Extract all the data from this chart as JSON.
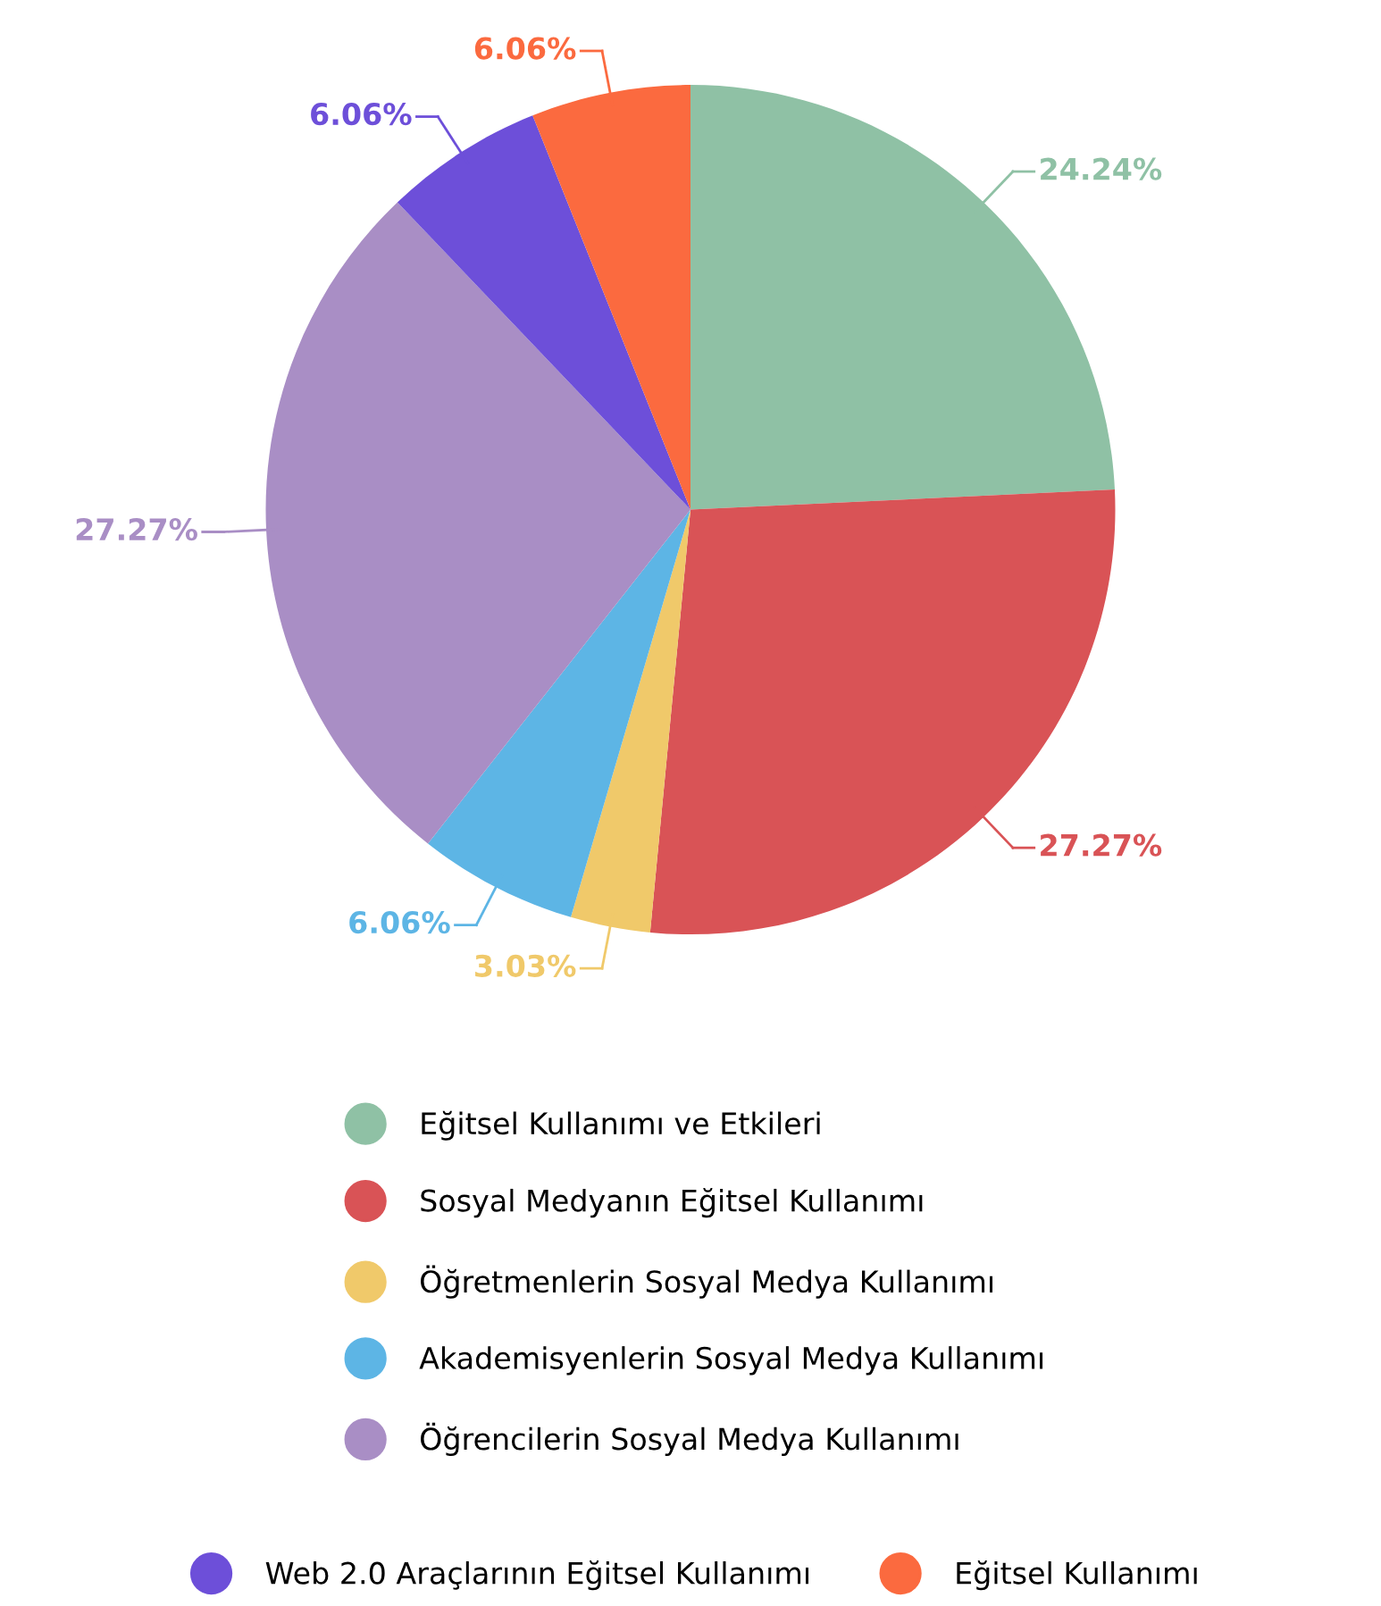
{
  "chart_data": {
    "type": "pie",
    "categories": [
      "Eğitsel Kullanımı ve Etkileri",
      "Sosyal Medyanın Eğitsel Kullanımı",
      "Öğretmenlerin Sosyal Medya Kullanımı",
      "Akademisyenlerin Sosyal Medya Kullanımı",
      "Öğrencilerin Sosyal Medya Kullanımı",
      "Web 2.0 Araçlarının Eğitsel Kullanımı",
      "Eğitsel Kullanımı"
    ],
    "values": [
      24.24,
      27.27,
      3.03,
      6.06,
      27.27,
      6.06,
      6.06
    ],
    "value_labels": [
      "24.24%",
      "27.27%",
      "3.03%",
      "6.06%",
      "27.27%",
      "6.06%",
      "6.06%"
    ],
    "colors": [
      "#8fc1a5",
      "#d95356",
      "#f0c96a",
      "#5db5e5",
      "#a98ec5",
      "#6d4fd9",
      "#fb6a3f"
    ],
    "legend": "bottom"
  }
}
